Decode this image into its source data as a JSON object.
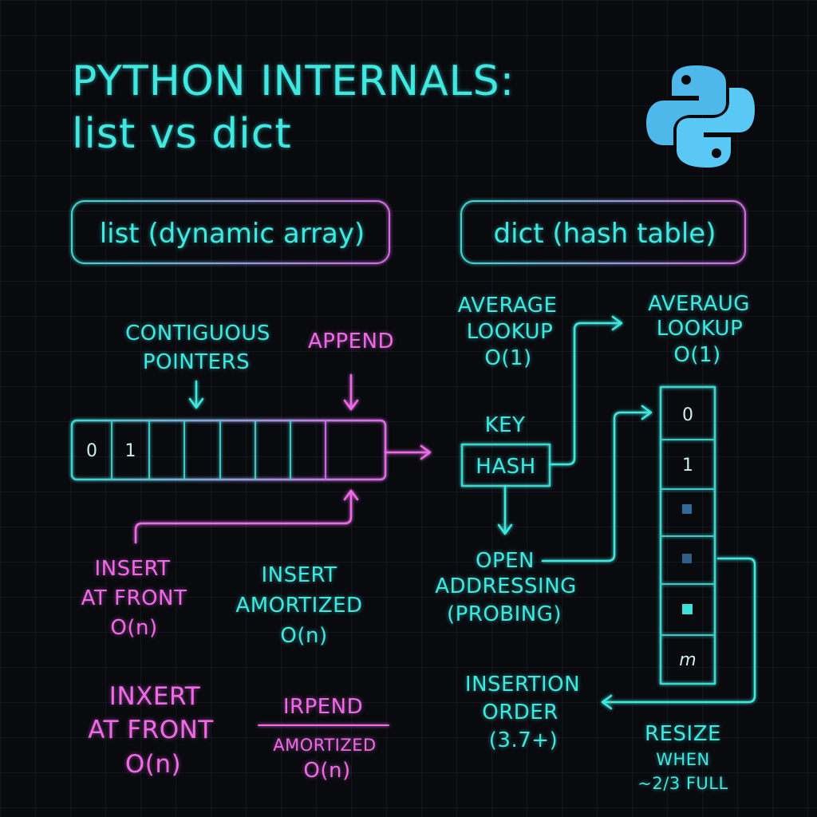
{
  "title": {
    "line1": "PYTHON INTERNALS:",
    "line2": "list vs dict"
  },
  "logo": "python-logo",
  "sections": {
    "list_label": "list (dynamic array)",
    "dict_label": "dict (hash table)"
  },
  "list_diagram": {
    "contiguous_line1": "CONTIGUOUS",
    "contiguous_line2": "POINTERS",
    "append": "APPEND",
    "cells": [
      "0",
      "1",
      "",
      "",
      "",
      "",
      "",
      ""
    ],
    "insert_front": [
      "INSERT",
      "AT FRONT",
      "O(n)"
    ],
    "insert_amortized": [
      "INSERT",
      "AMORTIZED",
      "O(n)"
    ],
    "inxert_front": [
      "INXERT",
      "AT FRONT",
      "O(n)"
    ],
    "irpend": [
      "IRPEND",
      "AMORTIZED",
      "O(n)"
    ]
  },
  "dict_diagram": {
    "average_lookup": [
      "AVERAGE",
      "LOOKUP",
      "O(1)"
    ],
    "averaug_lookup": [
      "AVERAUG",
      "LOOKUP",
      "O(1)"
    ],
    "key": "KEY",
    "hash": "HASH",
    "open_addressing": [
      "OPEN",
      "ADDRESSING",
      "(PROBING)"
    ],
    "slots": [
      "0",
      "1",
      "■",
      "■",
      "■",
      "m"
    ],
    "insertion_order": [
      "INSERTION",
      "ORDER",
      "(3.7+)"
    ],
    "resize": [
      "RESIZE",
      "WHEN",
      "~2/3 FULL"
    ]
  },
  "colors": {
    "cyan": "#3fe8e0",
    "pink": "#f06ae8",
    "background": "#080a0e",
    "python_blue": "#4fc3f7"
  }
}
